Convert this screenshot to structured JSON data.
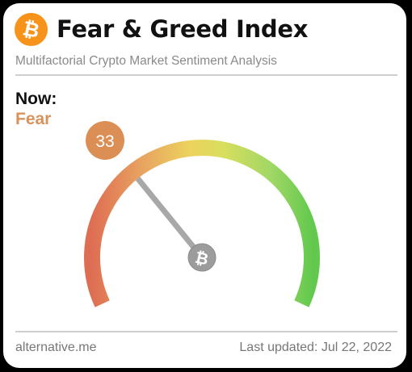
{
  "header": {
    "title": "Fear & Greed Index",
    "subtitle": "Multifactorial Crypto Market Sentiment Analysis",
    "logo_icon": "bitcoin-icon"
  },
  "status": {
    "now_label": "Now:",
    "classification": "Fear",
    "value": "33",
    "value_number": 33,
    "scale_min": 0,
    "scale_max": 100
  },
  "footer": {
    "source": "alternative.me",
    "last_updated": "Last updated: Jul 22, 2022"
  },
  "colors": {
    "accent_orange": "#f7931a",
    "fear": "#d8925c",
    "badge": "#dc8f55",
    "needle": "#a8a8a8",
    "hub": "#999999"
  }
}
